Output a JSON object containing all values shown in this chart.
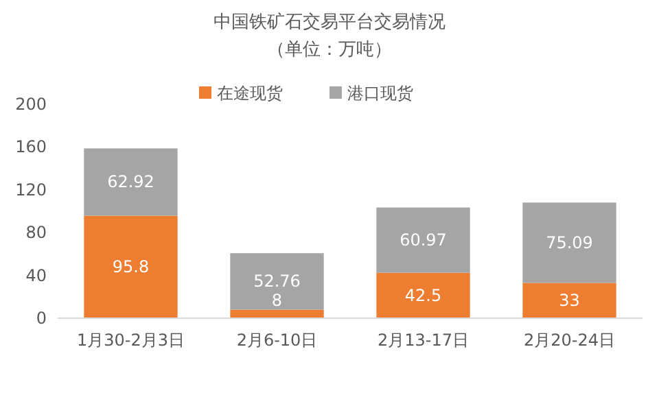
{
  "chart_data": {
    "type": "bar",
    "title": "中国铁矿石交易平台交易情况",
    "subtitle": "（单位：万吨）",
    "categories": [
      "1月30-2月3日",
      "2月6-10日",
      "2月13-17日",
      "2月20-24日"
    ],
    "series": [
      {
        "name": "在途现货",
        "color": "#ed7d31",
        "values": [
          95.8,
          8,
          42.5,
          33
        ]
      },
      {
        "name": "港口现货",
        "color": "#a5a5a5",
        "values": [
          62.92,
          52.76,
          60.97,
          75.09
        ]
      }
    ],
    "stacked": true,
    "ylim": [
      0,
      200
    ],
    "yticks": [
      0,
      40,
      80,
      120,
      160,
      200
    ],
    "grid": false,
    "legend": "top",
    "data_labels": true
  }
}
